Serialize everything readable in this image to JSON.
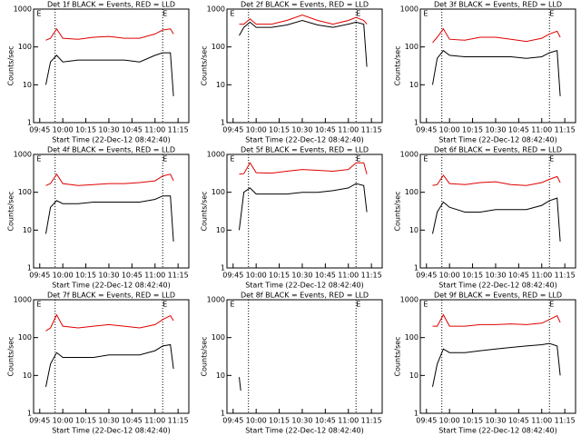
{
  "chart_data": [
    {
      "type": "line",
      "title": "Det 1f BLACK = Events, RED = LLD",
      "ylabel": "Counts/sec",
      "xlabel": "Start Time (22-Dec-12 08:42:40)",
      "log": true,
      "ylim": [
        1,
        1000
      ],
      "yticks": [
        1,
        10,
        100,
        1000
      ],
      "xlim": [
        "09:41",
        "11:22"
      ],
      "xticks": [
        "09:45",
        "10:00",
        "10:15",
        "10:30",
        "10:45",
        "11:00",
        "11:15"
      ],
      "vlines": [
        "09:55",
        "11:05"
      ],
      "annotations": [
        {
          "text": "E",
          "x": "09:43"
        },
        {
          "text": "E",
          "x": "11:05"
        }
      ],
      "x": [
        "09:49",
        "09:52",
        "09:56",
        "10:00",
        "10:10",
        "10:20",
        "10:30",
        "10:40",
        "10:50",
        "11:00",
        "11:05",
        "11:10",
        "11:12"
      ],
      "series": [
        {
          "name": "LLD",
          "color": "#e00000",
          "values": [
            150,
            170,
            300,
            170,
            160,
            180,
            190,
            170,
            170,
            220,
            280,
            300,
            220
          ]
        },
        {
          "name": "Events",
          "color": "#000000",
          "values": [
            10,
            40,
            60,
            40,
            45,
            45,
            45,
            45,
            40,
            60,
            70,
            70,
            5
          ]
        }
      ]
    },
    {
      "type": "line",
      "title": "Det 2f BLACK = Events, RED = LLD",
      "ylabel": "Counts/sec",
      "xlabel": "Start Time (22-Dec-12 08:42:40)",
      "log": true,
      "ylim": [
        1,
        1000
      ],
      "yticks": [
        1,
        10,
        100,
        1000
      ],
      "xlim": [
        "09:41",
        "11:22"
      ],
      "xticks": [
        "09:45",
        "10:00",
        "10:15",
        "10:30",
        "10:45",
        "11:00",
        "11:15"
      ],
      "vlines": [
        "09:55",
        "11:05"
      ],
      "annotations": [
        {
          "text": "E",
          "x": "09:43"
        },
        {
          "text": "E",
          "x": "11:05"
        }
      ],
      "x": [
        "09:49",
        "09:52",
        "09:56",
        "10:00",
        "10:10",
        "10:20",
        "10:30",
        "10:40",
        "10:50",
        "11:00",
        "11:05",
        "11:10",
        "11:12"
      ],
      "series": [
        {
          "name": "LLD",
          "color": "#e00000",
          "values": [
            400,
            400,
            550,
            400,
            400,
            500,
            700,
            500,
            400,
            500,
            600,
            500,
            400
          ]
        },
        {
          "name": "Events",
          "color": "#000000",
          "values": [
            200,
            330,
            450,
            330,
            330,
            380,
            500,
            380,
            330,
            400,
            450,
            400,
            30
          ]
        }
      ]
    },
    {
      "type": "line",
      "title": "Det 3f BLACK = Events, RED = LLD",
      "ylabel": "Counts/sec",
      "xlabel": "Start Time (22-Dec-12 08:42:40)",
      "log": true,
      "ylim": [
        1,
        1000
      ],
      "yticks": [
        1,
        10,
        100,
        1000
      ],
      "xlim": [
        "09:41",
        "11:22"
      ],
      "xticks": [
        "09:45",
        "10:00",
        "10:15",
        "10:30",
        "10:45",
        "11:00",
        "11:15"
      ],
      "vlines": [
        "09:55",
        "11:05"
      ],
      "annotations": [
        {
          "text": "E",
          "x": "09:43"
        },
        {
          "text": "E",
          "x": "11:05"
        }
      ],
      "x": [
        "09:49",
        "09:52",
        "09:56",
        "10:00",
        "10:10",
        "10:20",
        "10:30",
        "10:40",
        "10:50",
        "11:00",
        "11:05",
        "11:10",
        "11:12"
      ],
      "series": [
        {
          "name": "LLD",
          "color": "#e00000",
          "values": [
            130,
            180,
            300,
            160,
            150,
            180,
            180,
            160,
            140,
            170,
            220,
            260,
            180
          ]
        },
        {
          "name": "Events",
          "color": "#000000",
          "values": [
            10,
            50,
            80,
            60,
            55,
            55,
            55,
            55,
            50,
            55,
            70,
            80,
            5
          ]
        }
      ]
    },
    {
      "type": "line",
      "title": "Det 4f BLACK = Events, RED = LLD",
      "ylabel": "Counts/sec",
      "xlabel": "Start Time (22-Dec-12 08:42:40)",
      "log": true,
      "ylim": [
        1,
        1000
      ],
      "yticks": [
        1,
        10,
        100,
        1000
      ],
      "xlim": [
        "09:41",
        "11:22"
      ],
      "xticks": [
        "09:45",
        "10:00",
        "10:15",
        "10:30",
        "10:45",
        "11:00",
        "11:15"
      ],
      "vlines": [
        "09:55",
        "11:05"
      ],
      "annotations": [
        {
          "text": "E",
          "x": "09:43"
        },
        {
          "text": "E",
          "x": "11:05"
        }
      ],
      "x": [
        "09:49",
        "09:52",
        "09:56",
        "10:00",
        "10:10",
        "10:20",
        "10:30",
        "10:40",
        "10:50",
        "11:00",
        "11:05",
        "11:10",
        "11:12"
      ],
      "series": [
        {
          "name": "LLD",
          "color": "#e00000",
          "values": [
            150,
            170,
            300,
            170,
            150,
            160,
            170,
            170,
            180,
            200,
            270,
            300,
            200
          ]
        },
        {
          "name": "Events",
          "color": "#000000",
          "values": [
            8,
            40,
            60,
            50,
            50,
            55,
            55,
            55,
            55,
            65,
            80,
            80,
            5
          ]
        }
      ]
    },
    {
      "type": "line",
      "title": "Det 5f BLACK = Events, RED = LLD",
      "ylabel": "Counts/sec",
      "xlabel": "Start Time (22-Dec-12 08:42:40)",
      "log": true,
      "ylim": [
        1,
        1000
      ],
      "yticks": [
        1,
        10,
        100,
        1000
      ],
      "xlim": [
        "09:41",
        "11:22"
      ],
      "xticks": [
        "09:45",
        "10:00",
        "10:15",
        "10:30",
        "10:45",
        "11:00",
        "11:15"
      ],
      "vlines": [
        "09:55",
        "11:05"
      ],
      "annotations": [
        {
          "text": "E",
          "x": "09:43"
        },
        {
          "text": "E",
          "x": "11:05"
        }
      ],
      "x": [
        "09:49",
        "09:52",
        "09:56",
        "10:00",
        "10:10",
        "10:20",
        "10:30",
        "10:40",
        "10:50",
        "11:00",
        "11:05",
        "11:10",
        "11:12"
      ],
      "series": [
        {
          "name": "LLD",
          "color": "#e00000",
          "values": [
            300,
            310,
            600,
            330,
            320,
            360,
            400,
            380,
            360,
            400,
            600,
            600,
            300
          ]
        },
        {
          "name": "Events",
          "color": "#000000",
          "values": [
            10,
            100,
            130,
            90,
            90,
            90,
            100,
            100,
            110,
            130,
            170,
            150,
            30
          ]
        }
      ]
    },
    {
      "type": "line",
      "title": "Det 6f BLACK = Events, RED = LLD",
      "ylabel": "Counts/sec",
      "xlabel": "Start Time (22-Dec-12 08:42:40)",
      "log": true,
      "ylim": [
        1,
        1000
      ],
      "yticks": [
        1,
        10,
        100,
        1000
      ],
      "xlim": [
        "09:41",
        "11:22"
      ],
      "xticks": [
        "09:45",
        "10:00",
        "10:15",
        "10:30",
        "10:45",
        "11:00",
        "11:15"
      ],
      "vlines": [
        "09:55",
        "11:05"
      ],
      "annotations": [
        {
          "text": "E",
          "x": "09:43"
        },
        {
          "text": "E",
          "x": "11:05"
        }
      ],
      "x": [
        "09:49",
        "09:52",
        "09:56",
        "10:00",
        "10:10",
        "10:20",
        "10:30",
        "10:40",
        "10:50",
        "11:00",
        "11:05",
        "11:10",
        "11:12"
      ],
      "series": [
        {
          "name": "LLD",
          "color": "#e00000",
          "values": [
            150,
            160,
            280,
            170,
            160,
            180,
            190,
            160,
            150,
            180,
            220,
            260,
            180
          ]
        },
        {
          "name": "Events",
          "color": "#000000",
          "values": [
            8,
            30,
            55,
            40,
            30,
            30,
            35,
            35,
            35,
            45,
            60,
            70,
            5
          ]
        }
      ]
    },
    {
      "type": "line",
      "title": "Det 7f BLACK = Events, RED = LLD",
      "ylabel": "Counts/sec",
      "xlabel": "Start Time (22-Dec-12 08:42:40)",
      "log": true,
      "ylim": [
        1,
        1000
      ],
      "yticks": [
        1,
        10,
        100,
        1000
      ],
      "xlim": [
        "09:41",
        "11:22"
      ],
      "xticks": [
        "09:45",
        "10:00",
        "10:15",
        "10:30",
        "10:45",
        "11:00",
        "11:15"
      ],
      "vlines": [
        "09:55",
        "11:05"
      ],
      "annotations": [
        {
          "text": "E",
          "x": "09:43"
        },
        {
          "text": "E",
          "x": "11:05"
        }
      ],
      "x": [
        "09:49",
        "09:52",
        "09:56",
        "10:00",
        "10:10",
        "10:20",
        "10:30",
        "10:40",
        "10:50",
        "11:00",
        "11:05",
        "11:10",
        "11:12"
      ],
      "series": [
        {
          "name": "LLD",
          "color": "#e00000",
          "values": [
            150,
            180,
            400,
            200,
            180,
            200,
            220,
            200,
            180,
            220,
            300,
            380,
            280
          ]
        },
        {
          "name": "Events",
          "color": "#000000",
          "values": [
            5,
            20,
            40,
            30,
            30,
            30,
            35,
            35,
            35,
            45,
            60,
            65,
            15
          ]
        }
      ]
    },
    {
      "type": "line",
      "title": "Det 8f BLACK = Events, RED = LLD",
      "ylabel": "Counts/sec",
      "xlabel": "Start Time (22-Dec-12 08:42:40)",
      "log": true,
      "ylim": [
        1,
        1000
      ],
      "yticks": [
        1,
        10,
        100,
        1000
      ],
      "xlim": [
        "09:41",
        "11:22"
      ],
      "xticks": [
        "09:45",
        "10:00",
        "10:15",
        "10:30",
        "10:45",
        "11:00",
        "11:15"
      ],
      "vlines": [
        "09:55",
        "11:05"
      ],
      "annotations": [
        {
          "text": "E",
          "x": "09:43"
        },
        {
          "text": "E",
          "x": "11:05"
        }
      ],
      "x": [
        "09:49",
        "09:50"
      ],
      "series": [
        {
          "name": "Events",
          "color": "#000000",
          "values": [
            9,
            4
          ]
        }
      ]
    },
    {
      "type": "line",
      "title": "Det 9f BLACK = Events, RED = LLD",
      "ylabel": "Counts/sec",
      "xlabel": "Start Time (22-Dec-12 08:42:40)",
      "log": true,
      "ylim": [
        1,
        1000
      ],
      "yticks": [
        1,
        10,
        100,
        1000
      ],
      "xlim": [
        "09:41",
        "11:22"
      ],
      "xticks": [
        "09:45",
        "10:00",
        "10:15",
        "10:30",
        "10:45",
        "11:00",
        "11:15"
      ],
      "vlines": [
        "09:55",
        "11:05"
      ],
      "annotations": [
        {
          "text": "E",
          "x": "09:43"
        },
        {
          "text": "E",
          "x": "11:05"
        }
      ],
      "x": [
        "09:49",
        "09:52",
        "09:56",
        "10:00",
        "10:10",
        "10:20",
        "10:30",
        "10:40",
        "10:50",
        "11:00",
        "11:05",
        "11:10",
        "11:12"
      ],
      "series": [
        {
          "name": "LLD",
          "color": "#e00000",
          "values": [
            200,
            200,
            400,
            200,
            200,
            220,
            220,
            230,
            220,
            240,
            300,
            380,
            250
          ]
        },
        {
          "name": "Events",
          "color": "#000000",
          "values": [
            5,
            20,
            50,
            40,
            40,
            45,
            50,
            55,
            60,
            65,
            70,
            60,
            10
          ]
        }
      ]
    }
  ]
}
